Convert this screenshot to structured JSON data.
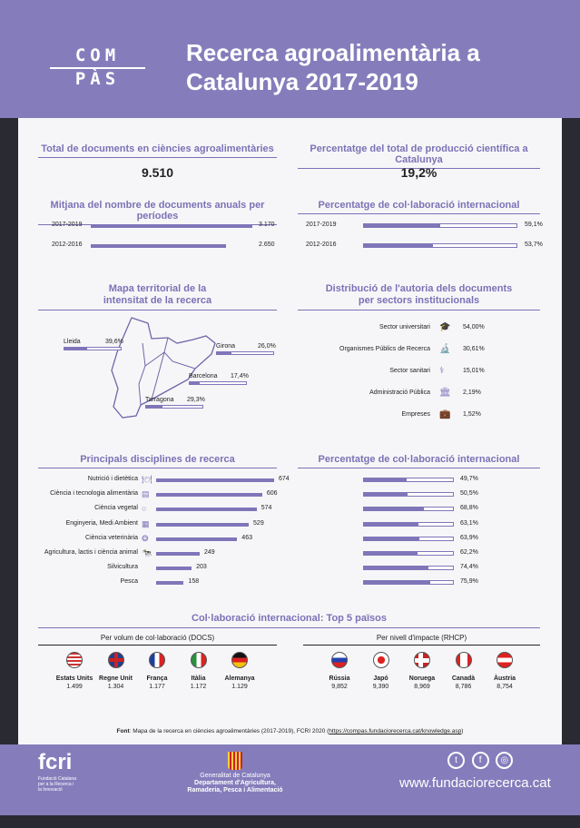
{
  "header": {
    "logo_top": "COM",
    "logo_bottom": "PÀS",
    "title_line1": "Recerca agroalimentària a",
    "title_line2": "Catalunya 2017-2019"
  },
  "totals": {
    "docs_title": "Total de documents en ciències agroalimentàries",
    "docs_value": "9.510",
    "pct_title": "Percentatge del total de producció científica a Catalunya",
    "pct_value": "19,2%"
  },
  "annual": {
    "title": "Mitjana del nombre de documents anuals per períodes",
    "rows": [
      {
        "period": "2017-2019",
        "value": 3170,
        "label": "3.170"
      },
      {
        "period": "2012-2016",
        "value": 2650,
        "label": "2.650"
      }
    ]
  },
  "intl_period": {
    "title": "Percentatge de col·laboració internacional",
    "rows": [
      {
        "period": "2017-2019",
        "value": 59.1,
        "label": "59,1%"
      },
      {
        "period": "2012-2016",
        "value": 53.7,
        "label": "53,7%"
      }
    ]
  },
  "map": {
    "title_line1": "Mapa territorial de la",
    "title_line2": "intensitat de la recerca",
    "provinces": [
      {
        "name": "Lleida",
        "value": 39.6,
        "label": "39,6%"
      },
      {
        "name": "Girona",
        "value": 26.0,
        "label": "26,0%"
      },
      {
        "name": "Barcelona",
        "value": 17.4,
        "label": "17,4%"
      },
      {
        "name": "Tarragona",
        "value": 29.3,
        "label": "29,3%"
      }
    ]
  },
  "sectors": {
    "title_line1": "Distribució de l'autoria dels documents",
    "title_line2": "per sectors institucionals",
    "rows": [
      {
        "name": "Sector universitari",
        "icon": "graduation-cap-icon",
        "glyph": "🎓",
        "label": "54,00%"
      },
      {
        "name": "Organismes Públics de Recerca",
        "icon": "microscope-icon",
        "glyph": "🔬",
        "label": "30,61%"
      },
      {
        "name": "Sector sanitari",
        "icon": "stethoscope-icon",
        "glyph": "⚕",
        "label": "15,01%"
      },
      {
        "name": "Administració Pública",
        "icon": "government-building-icon",
        "glyph": "🏛",
        "label": "2,19%"
      },
      {
        "name": "Empreses",
        "icon": "briefcase-icon",
        "glyph": "💼",
        "label": "1,52%"
      }
    ]
  },
  "disciplines": {
    "title": "Principals disciplines de recerca",
    "rows": [
      {
        "name": "Nutrició i dietètica",
        "icon": "plate-cutlery-icon",
        "glyph": "🍽",
        "value": 674
      },
      {
        "name": "Ciència i tecnologia alimentària",
        "icon": "food-packaging-icon",
        "glyph": "▤",
        "value": 606
      },
      {
        "name": "Ciència vegetal",
        "icon": "apple-icon",
        "glyph": "○",
        "value": 574
      },
      {
        "name": "Enginyeria, Medi Ambient",
        "icon": "engineering-icon",
        "glyph": "▦",
        "value": 529
      },
      {
        "name": "Ciència veterinària",
        "icon": "veterinary-icon",
        "glyph": "❂",
        "value": 463
      },
      {
        "name": "Agricultura, lactis i ciència animal",
        "icon": "cow-icon",
        "glyph": "🐄",
        "value": 249
      },
      {
        "name": "Silvicultura",
        "icon": "tree-icon",
        "glyph": "",
        "value": 203
      },
      {
        "name": "Pesca",
        "icon": "fish-icon",
        "glyph": "",
        "value": 158
      }
    ]
  },
  "disc_intl": {
    "title": "Percentatge de col·laboració internacional",
    "rows": [
      {
        "value": 49.7,
        "label": "49,7%"
      },
      {
        "value": 50.5,
        "label": "50,5%"
      },
      {
        "value": 68.8,
        "label": "68,8%"
      },
      {
        "value": 63.1,
        "label": "63,1%"
      },
      {
        "value": 63.9,
        "label": "63,9%"
      },
      {
        "value": 62.2,
        "label": "62,2%"
      },
      {
        "value": 74.4,
        "label": "74,4%"
      },
      {
        "value": 75.9,
        "label": "75,9%"
      }
    ]
  },
  "top5": {
    "title": "Col·laboració internacional: Top 5 països",
    "volume": {
      "title": "Per volum de col·laboració (DOCS)",
      "countries": [
        {
          "name": "Estats Units",
          "value": "1.499",
          "flag": "us"
        },
        {
          "name": "Regne Unit",
          "value": "1.304",
          "flag": "uk"
        },
        {
          "name": "França",
          "value": "1.177",
          "flag": "fr"
        },
        {
          "name": "Itàlia",
          "value": "1.172",
          "flag": "it"
        },
        {
          "name": "Alemanya",
          "value": "1.129",
          "flag": "de"
        }
      ]
    },
    "impact": {
      "title": "Per nivell d'impacte (RHCP)",
      "countries": [
        {
          "name": "Rússia",
          "value": "9,852",
          "flag": "ru"
        },
        {
          "name": "Japó",
          "value": "9,390",
          "flag": "jp"
        },
        {
          "name": "Noruega",
          "value": "8,969",
          "flag": "no"
        },
        {
          "name": "Canadà",
          "value": "8,786",
          "flag": "ca"
        },
        {
          "name": "Àustria",
          "value": "8,754",
          "flag": "at"
        }
      ]
    }
  },
  "source": {
    "label": "Font",
    "text": ": Mapa de la recerca en ciències agroalimentàries (2017-2019), FCRI 2020 (",
    "link": "https://compas.fundaciorecerca.cat/knowledge.asp",
    "close": ")"
  },
  "footer": {
    "fcri": "fcri",
    "fcri_sub": "Fundació Catalana per a la Recerca i la Innovació",
    "gen": "Generalitat de Catalunya",
    "dept1": "Departament d'Agricultura,",
    "dept2": "Ramaderia, Pesca i Alimentació",
    "url": "www.fundaciorecerca.cat"
  },
  "colors": {
    "accent": "#857dbb",
    "bar": "#7f76b9"
  }
}
